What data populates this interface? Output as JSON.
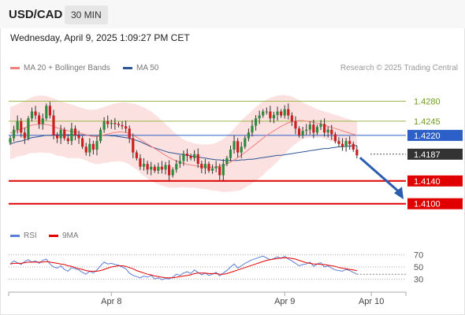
{
  "header": {
    "symbol": "USD/CAD",
    "interval": "30 MIN",
    "datetime": "Wednesday, April 9, 2025 1:09:27 PM CET"
  },
  "legend": {
    "ma20_bb": "MA 20 + Bollinger Bands",
    "ma20_color": "#f08080",
    "ma50": "MA 50",
    "ma50_color": "#2c5592",
    "credit": "Research © 2025 Trading Central"
  },
  "rsi_legend": {
    "rsi": "RSI",
    "rsi_color": "#5b7fd6",
    "ma9": "9MA",
    "ma9_color": "#e60000"
  },
  "chart_data": {
    "type": "candlestick",
    "price_ylim": [
      1.4065,
      1.4325
    ],
    "x_ticks": [
      {
        "label": "Apr 8",
        "index": 28
      },
      {
        "label": "Apr 9",
        "index": 76
      },
      {
        "label": "Apr 10",
        "index": 100
      }
    ],
    "levels": [
      {
        "label": "1.4280",
        "value": 1.428,
        "kind": "resistance"
      },
      {
        "label": "1.4245",
        "value": 1.4245,
        "kind": "resistance"
      },
      {
        "label": "1.4220",
        "value": 1.422,
        "kind": "pivot"
      },
      {
        "label": "1.4187",
        "value": 1.4187,
        "kind": "last"
      },
      {
        "label": "1.4140",
        "value": 1.414,
        "kind": "support"
      },
      {
        "label": "1.4100",
        "value": 1.41,
        "kind": "support"
      }
    ],
    "forecast_arrow": {
      "from": 1.4185,
      "to": 1.4105,
      "direction": "down"
    },
    "closes": [
      1.4215,
      1.423,
      1.4245,
      1.4225,
      1.4215,
      1.425,
      1.4262,
      1.4255,
      1.424,
      1.425,
      1.4272,
      1.4255,
      1.422,
      1.4215,
      1.423,
      1.4215,
      1.421,
      1.4232,
      1.422,
      1.4215,
      1.42,
      1.419,
      1.4205,
      1.4195,
      1.421,
      1.423,
      1.4245,
      1.424,
      1.4242,
      1.424,
      1.4238,
      1.4236,
      1.4232,
      1.4215,
      1.419,
      1.418,
      1.4165,
      1.417,
      1.416,
      1.4165,
      1.4158,
      1.4165,
      1.416,
      1.4168,
      1.415,
      1.416,
      1.417,
      1.4175,
      1.4188,
      1.4184,
      1.418,
      1.4187,
      1.417,
      1.4162,
      1.417,
      1.4158,
      1.4162,
      1.4165,
      1.415,
      1.417,
      1.418,
      1.4195,
      1.421,
      1.419,
      1.42,
      1.4215,
      1.4225,
      1.4237,
      1.425,
      1.4255,
      1.4262,
      1.4262,
      1.425,
      1.4256,
      1.4262,
      1.4255,
      1.4266,
      1.4255,
      1.4245,
      1.4232,
      1.422,
      1.4228,
      1.423,
      1.4239,
      1.4225,
      1.4235,
      1.424,
      1.4225,
      1.423,
      1.4222,
      1.421,
      1.4205,
      1.42,
      1.421,
      1.4205,
      1.4195,
      1.4185
    ],
    "ma20": [
      1.4224,
      1.4226,
      1.4229,
      1.4231,
      1.4233,
      1.4236,
      1.4238,
      1.4239,
      1.424,
      1.424,
      1.4239,
      1.4238,
      1.4236,
      1.4233,
      1.4232,
      1.423,
      1.4228,
      1.4227,
      1.4226,
      1.4225,
      1.4223,
      1.4221,
      1.4219,
      1.4218,
      1.4218,
      1.4219,
      1.4221,
      1.4222,
      1.4224,
      1.4225,
      1.4226,
      1.4226,
      1.4225,
      1.4223,
      1.422,
      1.4217,
      1.4213,
      1.4209,
      1.4205,
      1.4201,
      1.4197,
      1.4193,
      1.4189,
      1.4185,
      1.4181,
      1.4178,
      1.4175,
      1.4173,
      1.4171,
      1.4169,
      1.4168,
      1.4167,
      1.4166,
      1.4165,
      1.4165,
      1.4164,
      1.4164,
      1.4165,
      1.4166,
      1.4167,
      1.417,
      1.4173,
      1.4177,
      1.4181,
      1.4185,
      1.419,
      1.4195,
      1.42,
      1.4205,
      1.421,
      1.4215,
      1.422,
      1.4224,
      1.4228,
      1.4232,
      1.4236,
      1.4239,
      1.4242,
      1.4244,
      1.4245,
      1.4246,
      1.4246,
      1.4245,
      1.4244,
      1.4243,
      1.4241,
      1.424,
      1.4238,
      1.4236,
      1.4234,
      1.4232,
      1.423,
      1.4228,
      1.4226,
      1.4224,
      1.4222,
      1.422
    ],
    "bb_upper": [
      1.427,
      1.4272,
      1.4275,
      1.4278,
      1.4281,
      1.4284,
      1.4287,
      1.4289,
      1.429,
      1.429,
      1.4289,
      1.4287,
      1.4285,
      1.4282,
      1.428,
      1.4278,
      1.4276,
      1.4274,
      1.4272,
      1.427,
      1.4268,
      1.4266,
      1.4265,
      1.4265,
      1.4266,
      1.4268,
      1.427,
      1.4272,
      1.4274,
      1.4276,
      1.4277,
      1.4278,
      1.4278,
      1.4277,
      1.4276,
      1.4274,
      1.4272,
      1.4269,
      1.4266,
      1.4262,
      1.4257,
      1.4252,
      1.4246,
      1.424,
      1.4234,
      1.4228,
      1.4222,
      1.4217,
      1.4213,
      1.421,
      1.4208,
      1.4206,
      1.4205,
      1.4204,
      1.4204,
      1.4204,
      1.4205,
      1.4207,
      1.421,
      1.4214,
      1.4219,
      1.4225,
      1.4232,
      1.4239,
      1.4246,
      1.4252,
      1.4258,
      1.4264,
      1.427,
      1.4275,
      1.428,
      1.4283,
      1.4286,
      1.4288,
      1.429,
      1.4291,
      1.4291,
      1.429,
      1.4288,
      1.4285,
      1.4282,
      1.4278,
      1.4275,
      1.4272,
      1.4269,
      1.4266,
      1.4264,
      1.4262,
      1.426,
      1.4258,
      1.4256,
      1.4254,
      1.4252,
      1.425,
      1.4248,
      1.4246,
      1.4244
    ],
    "bb_lower": [
      1.4178,
      1.418,
      1.4183,
      1.4184,
      1.4185,
      1.4188,
      1.4189,
      1.4189,
      1.419,
      1.419,
      1.4189,
      1.4189,
      1.4187,
      1.4184,
      1.4184,
      1.4182,
      1.418,
      1.418,
      1.418,
      1.418,
      1.4178,
      1.4176,
      1.4173,
      1.4171,
      1.417,
      1.417,
      1.4172,
      1.4172,
      1.4174,
      1.4174,
      1.4175,
      1.4174,
      1.4172,
      1.4169,
      1.4164,
      1.416,
      1.4154,
      1.4149,
      1.4144,
      1.414,
      1.4137,
      1.4134,
      1.4132,
      1.413,
      1.4128,
      1.4128,
      1.4128,
      1.4129,
      1.4129,
      1.4128,
      1.4128,
      1.4128,
      1.4127,
      1.4126,
      1.4126,
      1.4124,
      1.4123,
      1.4123,
      1.4122,
      1.412,
      1.4121,
      1.4121,
      1.4122,
      1.4123,
      1.4124,
      1.4128,
      1.4132,
      1.4136,
      1.414,
      1.4145,
      1.415,
      1.4157,
      1.4162,
      1.4168,
      1.4174,
      1.4181,
      1.4187,
      1.4194,
      1.42,
      1.4205,
      1.421,
      1.4214,
      1.4215,
      1.4216,
      1.4217,
      1.4216,
      1.4216,
      1.4214,
      1.4212,
      1.421,
      1.4208,
      1.4206,
      1.4204,
      1.4202,
      1.42,
      1.4198,
      1.4196
    ],
    "ma50": [
      1.4205,
      1.4207,
      1.4209,
      1.421,
      1.4212,
      1.4214,
      1.4216,
      1.4217,
      1.4218,
      1.4219,
      1.422,
      1.422,
      1.4221,
      1.4221,
      1.4221,
      1.4221,
      1.4221,
      1.4221,
      1.4221,
      1.4221,
      1.4221,
      1.4221,
      1.422,
      1.422,
      1.422,
      1.422,
      1.422,
      1.422,
      1.4219,
      1.4219,
      1.4218,
      1.4217,
      1.4216,
      1.4215,
      1.4213,
      1.4211,
      1.4209,
      1.4206,
      1.4203,
      1.42,
      1.4198,
      1.4196,
      1.4194,
      1.4192,
      1.419,
      1.4189,
      1.4188,
      1.4187,
      1.4186,
      1.4185,
      1.4184,
      1.4183,
      1.4182,
      1.4181,
      1.418,
      1.4179,
      1.4178,
      1.4177,
      1.4177,
      1.4176,
      1.4176,
      1.4176,
      1.4176,
      1.4176,
      1.4177,
      1.4177,
      1.4178,
      1.4178,
      1.4179,
      1.418,
      1.4181,
      1.4182,
      1.4183,
      1.4184,
      1.4185,
      1.4185,
      1.4186,
      1.4187,
      1.4188,
      1.4189,
      1.419,
      1.4191,
      1.4192,
      1.4193,
      1.4194,
      1.4195,
      1.4196,
      1.4197,
      1.4197,
      1.4198,
      1.4199,
      1.42,
      1.42,
      1.4201,
      1.4201,
      1.4202,
      1.4202
    ],
    "rsi_ylim": [
      20,
      80
    ],
    "rsi_levels": [
      {
        "label": "70",
        "value": 70
      },
      {
        "label": "50",
        "value": 50
      },
      {
        "label": "30",
        "value": 30
      }
    ],
    "rsi": [
      55,
      60,
      57,
      54,
      59,
      62,
      58,
      60,
      56,
      61,
      63,
      55,
      50,
      48,
      52,
      46,
      43,
      49,
      47,
      45,
      41,
      38,
      43,
      40,
      45,
      52,
      58,
      55,
      56,
      54,
      53,
      50,
      47,
      40,
      36,
      34,
      32,
      35,
      33,
      36,
      30,
      32,
      29,
      31,
      30,
      33,
      38,
      36,
      40,
      42,
      39,
      45,
      41,
      37,
      40,
      36,
      38,
      41,
      35,
      40,
      44,
      50,
      55,
      48,
      52,
      56,
      59,
      62,
      64,
      66,
      68,
      65,
      62,
      64,
      67,
      64,
      68,
      63,
      60,
      56,
      52,
      54,
      55,
      58,
      51,
      55,
      57,
      50,
      52,
      48,
      45,
      44,
      43,
      46,
      44,
      41,
      38
    ],
    "rsi_ma9": [
      55,
      56,
      56,
      56,
      57,
      58,
      58,
      58,
      58,
      58,
      59,
      58,
      57,
      56,
      55,
      54,
      52,
      51,
      49,
      47,
      46,
      44,
      43,
      43,
      43,
      44,
      46,
      48,
      50,
      51,
      52,
      52,
      51,
      49,
      47,
      44,
      42,
      40,
      38,
      37,
      35,
      34,
      33,
      32,
      32,
      32,
      33,
      34,
      35,
      36,
      37,
      39,
      40,
      40,
      40,
      39,
      39,
      39,
      38,
      38,
      39,
      41,
      43,
      45,
      47,
      49,
      51,
      53,
      55,
      57,
      59,
      61,
      62,
      63,
      64,
      65,
      65,
      65,
      64,
      63,
      61,
      59,
      57,
      56,
      55,
      55,
      54,
      54,
      53,
      52,
      51,
      49,
      48,
      47,
      46,
      45,
      44
    ]
  }
}
